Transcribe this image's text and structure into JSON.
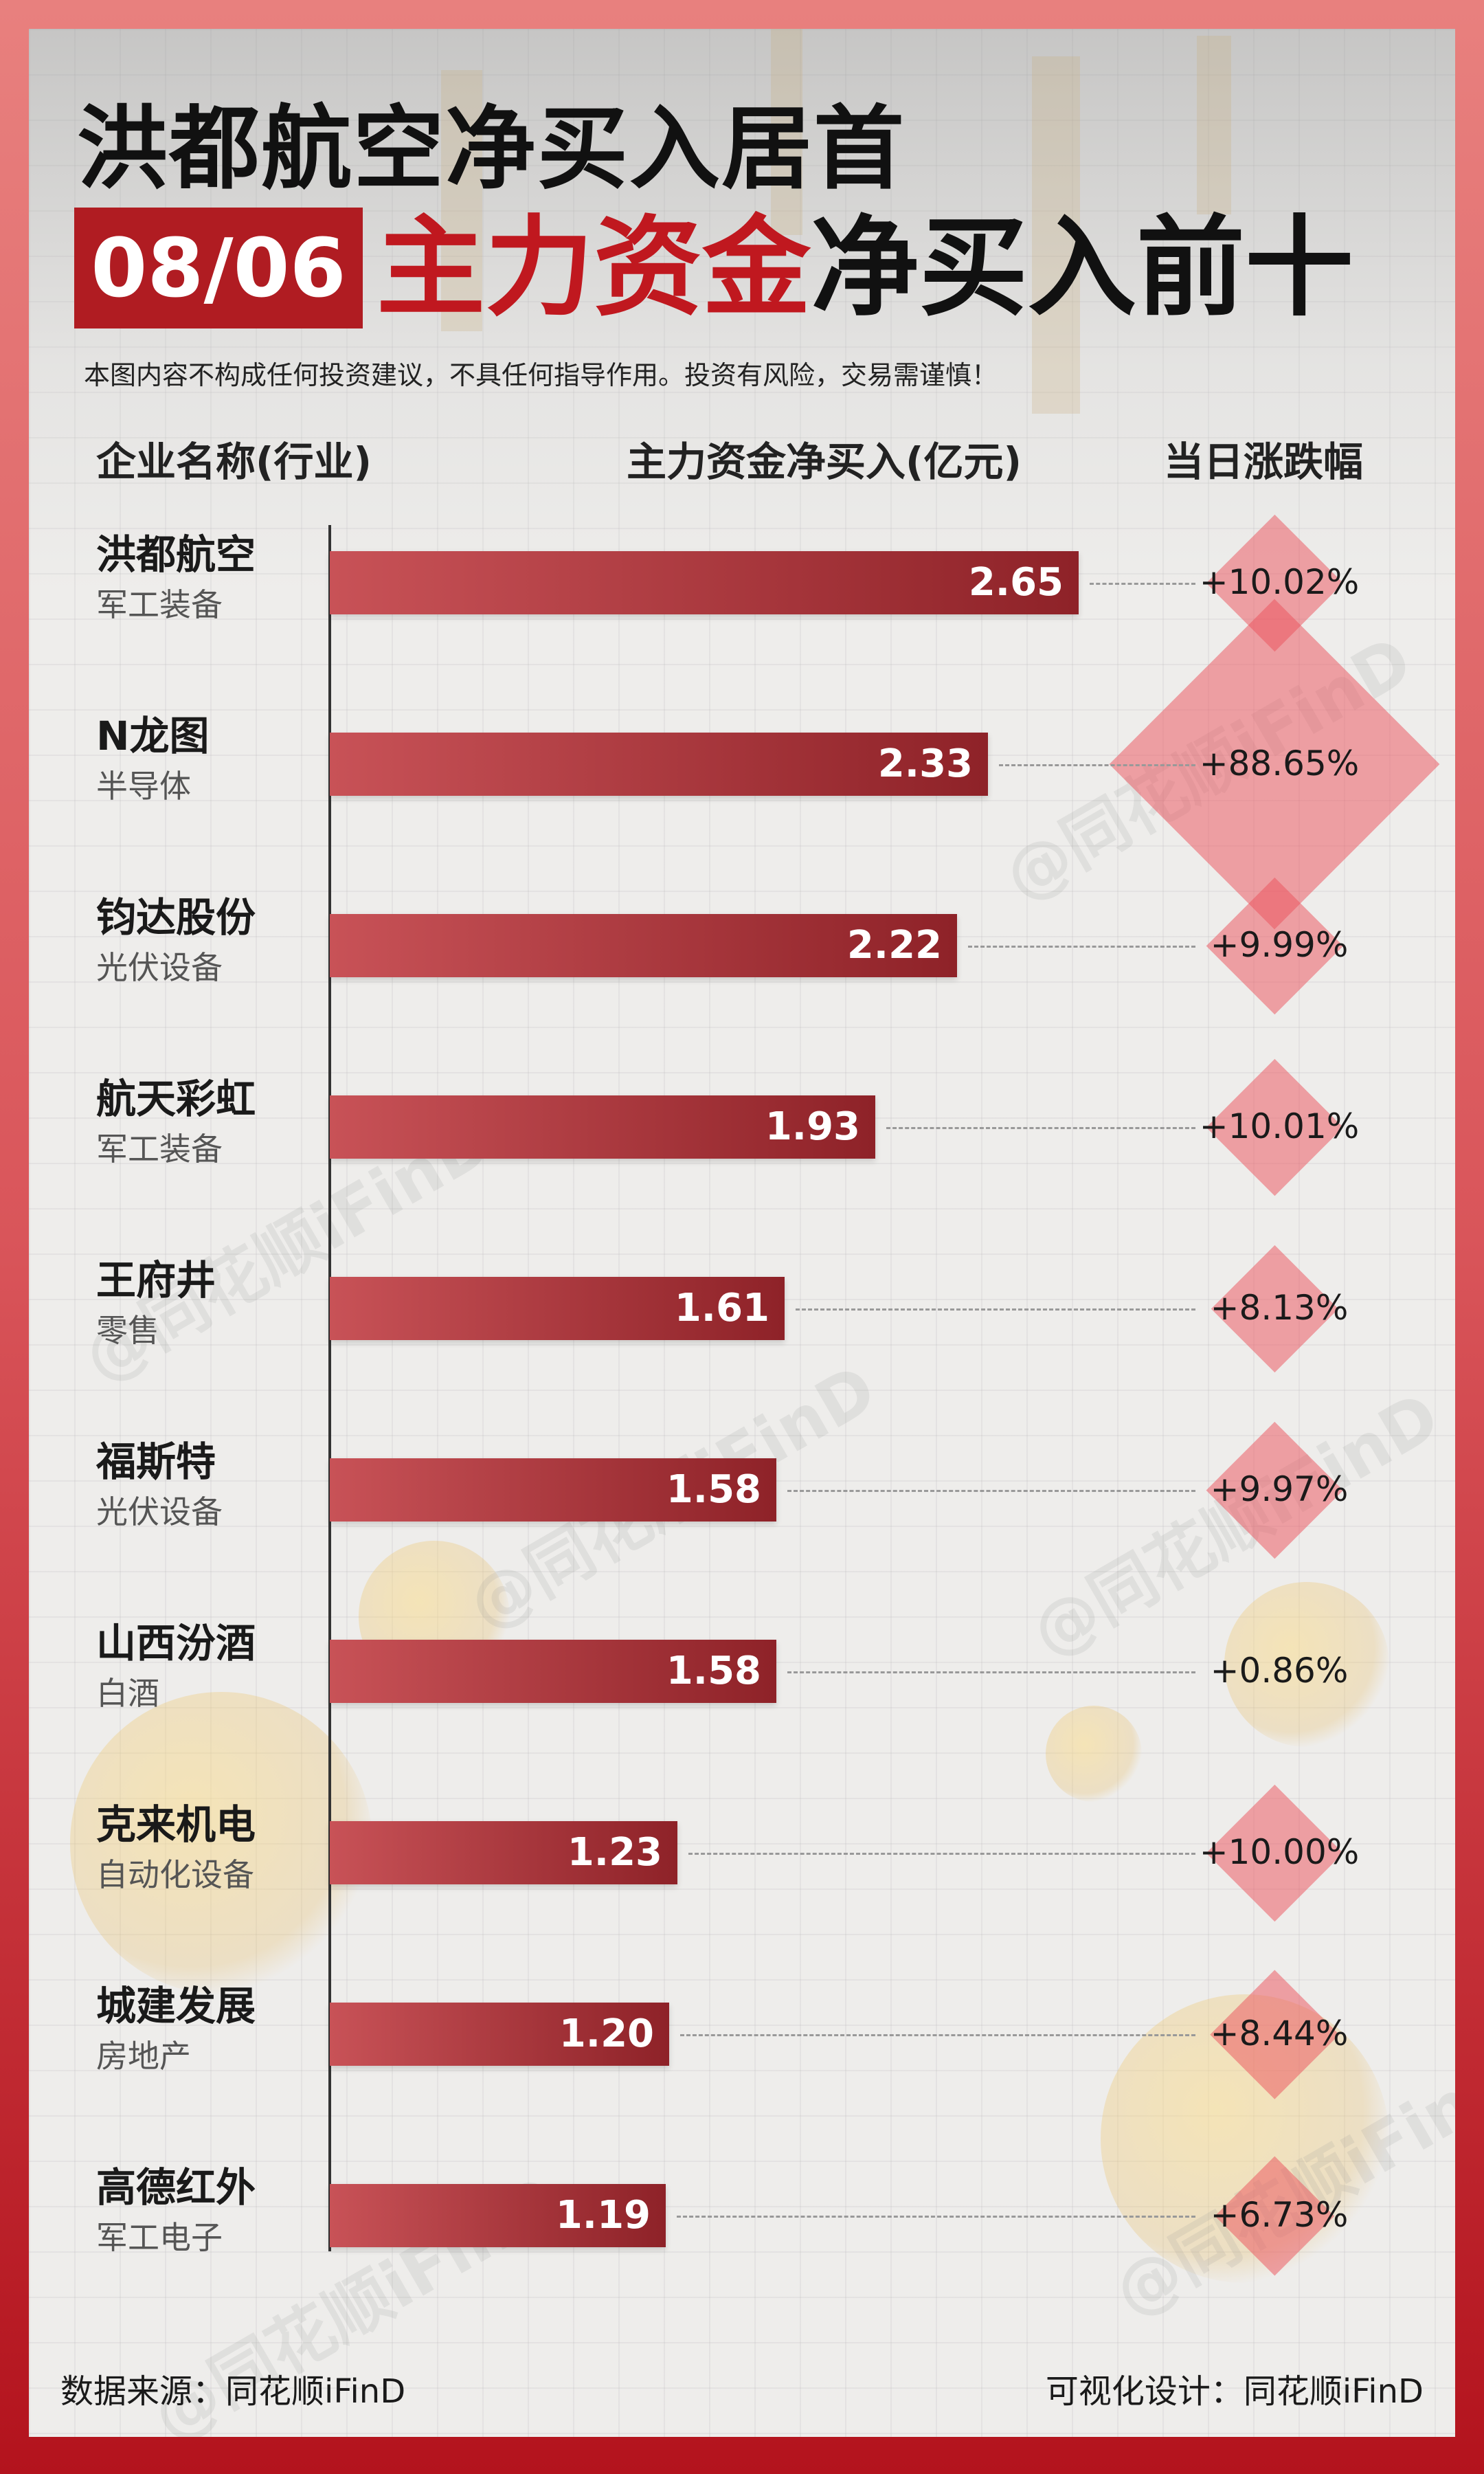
{
  "title_main": "洪都航空净买入居首",
  "date": "08/06",
  "title_red": "主力资金",
  "title_black": "净买入前十",
  "disclaimer": "本图内容不构成任何投资建议，不具任何指导作用。投资有风险，交易需谨慎！",
  "headers": {
    "company": "企业名称(行业)",
    "inflow": "主力资金净买入(亿元)",
    "change": "当日涨跌幅"
  },
  "watermark": "@同花顺iFinD",
  "footer": {
    "source": "数据来源：同花顺iFinD",
    "design": "可视化设计：同花顺iFinD"
  },
  "colors": {
    "accent_red": "#c0181f",
    "bar_start": "#c85257",
    "bar_end": "#8e2228",
    "diamond": "#eb505a"
  },
  "chart_data": {
    "type": "bar",
    "orientation": "horizontal",
    "categories": [
      "洪都航空",
      "N龙图",
      "钧达股份",
      "航天彩虹",
      "王府井",
      "福斯特",
      "山西汾酒",
      "克来机电",
      "城建发展",
      "高德红外"
    ],
    "industries": [
      "军工装备",
      "半导体",
      "光伏设备",
      "军工装备",
      "零售",
      "光伏设备",
      "白酒",
      "自动化设备",
      "房地产",
      "军工电子"
    ],
    "values": [
      2.65,
      2.33,
      2.22,
      1.93,
      1.61,
      1.58,
      1.58,
      1.23,
      1.2,
      1.19
    ],
    "value_labels": [
      "2.65",
      "2.33",
      "2.22",
      "1.93",
      "1.61",
      "1.58",
      "1.58",
      "1.23",
      "1.20",
      "1.19"
    ],
    "change_labels": [
      "+10.02%",
      "+88.65%",
      "+9.99%",
      "+10.01%",
      "+8.13%",
      "+9.97%",
      "+0.86%",
      "+10.00%",
      "+8.44%",
      "+6.73%"
    ],
    "change_values": [
      10.02,
      88.65,
      9.99,
      10.01,
      8.13,
      9.97,
      0.86,
      10.0,
      8.44,
      6.73
    ],
    "xlim": [
      0,
      2.65
    ]
  }
}
